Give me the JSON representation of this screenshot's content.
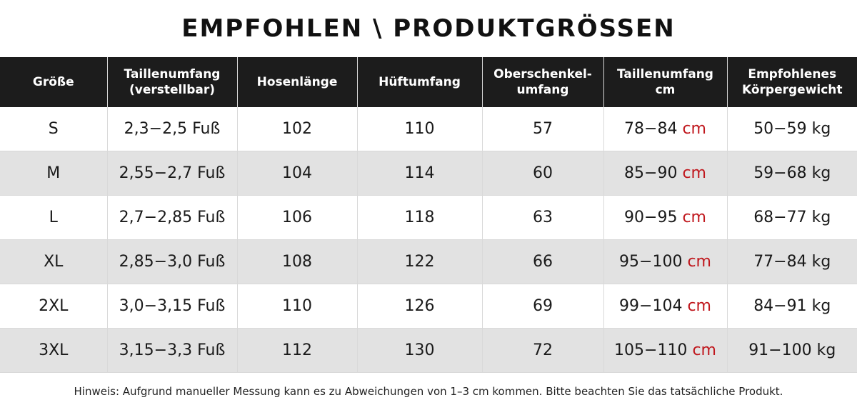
{
  "title": "EMPFOHLEN \\ PRODUKTGRÖSSEN",
  "headers": [
    [
      "Größe"
    ],
    [
      "Taillenumfang",
      "(verstellbar)"
    ],
    [
      "Hosenlänge"
    ],
    [
      "Hüftumfang"
    ],
    [
      "Oberschenkel-",
      "umfang"
    ],
    [
      "Taillenumfang",
      "cm"
    ],
    [
      "Empfohlenes",
      "Körpergewicht"
    ]
  ],
  "rows": [
    {
      "size": "S",
      "waist_ft": "2,3−2,5 Fuß",
      "length": "102",
      "hip": "110",
      "thigh": "57",
      "waist_cm": "78−84",
      "waist_cm_unit": "cm",
      "weight": "50−59 kg"
    },
    {
      "size": "M",
      "waist_ft": "2,55−2,7 Fuß",
      "length": "104",
      "hip": "114",
      "thigh": "60",
      "waist_cm": "85−90",
      "waist_cm_unit": "cm",
      "weight": "59−68 kg"
    },
    {
      "size": "L",
      "waist_ft": "2,7−2,85 Fuß",
      "length": "106",
      "hip": "118",
      "thigh": "63",
      "waist_cm": "90−95",
      "waist_cm_unit": "cm",
      "weight": "68−77 kg"
    },
    {
      "size": "XL",
      "waist_ft": "2,85−3,0 Fuß",
      "length": "108",
      "hip": "122",
      "thigh": "66",
      "waist_cm": "95−100",
      "waist_cm_unit": "cm",
      "weight": "77−84 kg"
    },
    {
      "size": "2XL",
      "waist_ft": "3,0−3,15 Fuß",
      "length": "110",
      "hip": "126",
      "thigh": "69",
      "waist_cm": "99−104",
      "waist_cm_unit": "cm",
      "weight": "84−91 kg"
    },
    {
      "size": "3XL",
      "waist_ft": "3,15−3,3 Fuß",
      "length": "112",
      "hip": "130",
      "thigh": "72",
      "waist_cm": "105−110",
      "waist_cm_unit": "cm",
      "weight": "91−100 kg"
    }
  ],
  "note": "Hinweis: Aufgrund manueller Messung kann es zu Abweichungen von 1–3 cm kommen. Bitte beachten Sie das tatsächliche Produkt.",
  "colors": {
    "header_bg": "#1c1c1c",
    "stripe": "#e2e2e2",
    "unit_accent": "#c0171d"
  }
}
